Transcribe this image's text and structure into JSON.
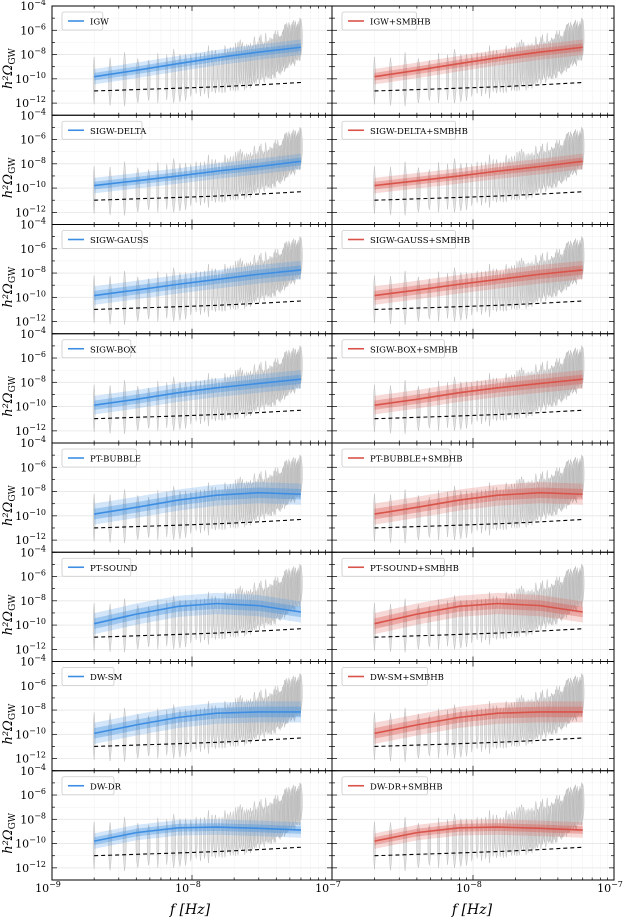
{
  "figure": {
    "ylabel": "h²Ω",
    "ylabel_sub": "GW",
    "xlabel": "f [Hz]"
  },
  "axes": {
    "x_ticks": [
      {
        "value": 1e-09,
        "base": "10",
        "exp": "−9"
      },
      {
        "value": 1e-08,
        "base": "10",
        "exp": "−8"
      },
      {
        "value": 1e-07,
        "base": "10",
        "exp": "−7"
      }
    ],
    "y_ticks": [
      {
        "value": 0.0001,
        "base": "10",
        "exp": "−4"
      },
      {
        "value": 1e-06,
        "base": "10",
        "exp": "−6"
      },
      {
        "value": 1e-08,
        "base": "10",
        "exp": "−8"
      },
      {
        "value": 1e-10,
        "base": "10",
        "exp": "−10"
      },
      {
        "value": 1e-12,
        "base": "10",
        "exp": "−12"
      }
    ]
  },
  "colors": {
    "blue": "#3d8ee3",
    "red": "#d9534a",
    "data_gray": "#c8c8c8",
    "dashed": "#000000"
  },
  "chart_data": {
    "type": "line",
    "xscale": "log",
    "yscale": "log",
    "xlim": [
      1e-09,
      1e-07
    ],
    "ylim": [
      1e-13,
      0.0001
    ],
    "xlabel": "f [Hz]",
    "ylabel": "h²Ω_GW",
    "grid": true,
    "legend_position": "upper-left",
    "x": [
      2e-09,
      4e-09,
      8e-09,
      1.5e-08,
      3e-08,
      6e-08
    ],
    "sensitivity_curve": [
      1e-11,
      1.3e-11,
      1.7e-11,
      2.2e-11,
      3.2e-11,
      5e-11
    ],
    "rows": [
      {
        "model": "IGW",
        "blue_label": "IGW",
        "red_label": "IGW+SMBHB",
        "median": [
          1.5e-10,
          5e-10,
          1.8e-09,
          5.5e-09,
          1.6e-08,
          4e-08
        ],
        "band_factor": 2.5
      },
      {
        "model": "SIGW-DELTA",
        "blue_label": "SIGW-DELTA",
        "red_label": "SIGW-DELTA+SMBHB",
        "median": [
          1.6e-10,
          4e-10,
          1e-09,
          2.5e-09,
          6e-09,
          1.6e-08
        ],
        "band_factor": 2.5
      },
      {
        "model": "SIGW-GAUSS",
        "blue_label": "SIGW-GAUSS",
        "red_label": "SIGW-GAUSS+SMBHB",
        "median": [
          1.4e-10,
          4e-10,
          1.2e-09,
          3e-09,
          8e-09,
          1.8e-08
        ],
        "band_factor": 3
      },
      {
        "model": "SIGW-BOX",
        "blue_label": "SIGW-BOX",
        "red_label": "SIGW-BOX+SMBHB",
        "median": [
          1.3e-10,
          4e-10,
          1.4e-09,
          3.5e-09,
          8e-09,
          1.8e-08
        ],
        "band_factor": 3
      },
      {
        "model": "PT-BUBBLE",
        "blue_label": "PT-BUBBLE",
        "red_label": "PT-BUBBLE+SMBHB",
        "median": [
          1.4e-10,
          5e-10,
          2e-09,
          5e-09,
          8e-09,
          6e-09
        ],
        "band_factor": 3.5
      },
      {
        "model": "PT-SOUND",
        "blue_label": "PT-SOUND",
        "red_label": "PT-SOUND+SMBHB",
        "median": [
          1.3e-10,
          8e-10,
          3.5e-09,
          6e-09,
          4e-09,
          1.2e-09
        ],
        "band_factor": 3.5
      },
      {
        "model": "DW-SM",
        "blue_label": "DW-SM",
        "red_label": "DW-SM+SMBHB",
        "median": [
          1.2e-10,
          6e-10,
          2.5e-09,
          5.5e-09,
          7e-09,
          7e-09
        ],
        "band_factor": 3.5
      },
      {
        "model": "DW-DR",
        "blue_label": "DW-DR",
        "red_label": "DW-DR+SMBHB",
        "median": [
          1.6e-10,
          8e-10,
          2e-09,
          2.3e-09,
          1.8e-09,
          1.3e-09
        ],
        "band_factor": 2.5
      }
    ],
    "violin_x": [
      2e-09,
      2.6e-09,
      3.3e-09,
      4.1e-09,
      4.9e-09,
      5.7e-09,
      6.6e-09,
      7.4e-09,
      8.2e-09,
      9e-09,
      9.8e-09,
      1.07e-08,
      1.15e-08,
      1.23e-08,
      1.31e-08,
      1.39e-08,
      1.47e-08,
      1.56e-08,
      1.64e-08,
      1.72e-08,
      1.8e-08,
      1.88e-08,
      1.97e-08,
      2.05e-08,
      2.13e-08,
      2.21e-08,
      2.29e-08,
      2.38e-08,
      2.46e-08,
      2.54e-08,
      2.62e-08,
      2.7e-08,
      2.79e-08,
      2.87e-08,
      2.95e-08,
      3.03e-08,
      3.11e-08,
      3.2e-08,
      3.28e-08,
      3.36e-08,
      3.44e-08,
      3.52e-08,
      3.61e-08,
      3.69e-08,
      3.77e-08,
      3.85e-08,
      3.93e-08,
      4.02e-08,
      4.1e-08,
      4.18e-08,
      4.26e-08,
      4.34e-08,
      4.43e-08,
      4.51e-08,
      4.59e-08,
      4.67e-08,
      4.75e-08,
      4.84e-08,
      4.92e-08,
      5e-08,
      5.08e-08,
      5.16e-08,
      5.25e-08,
      5.33e-08,
      5.41e-08,
      5.49e-08,
      5.57e-08,
      5.66e-08,
      5.74e-08,
      5.82e-08,
      5.9e-08,
      6e-08
    ]
  }
}
